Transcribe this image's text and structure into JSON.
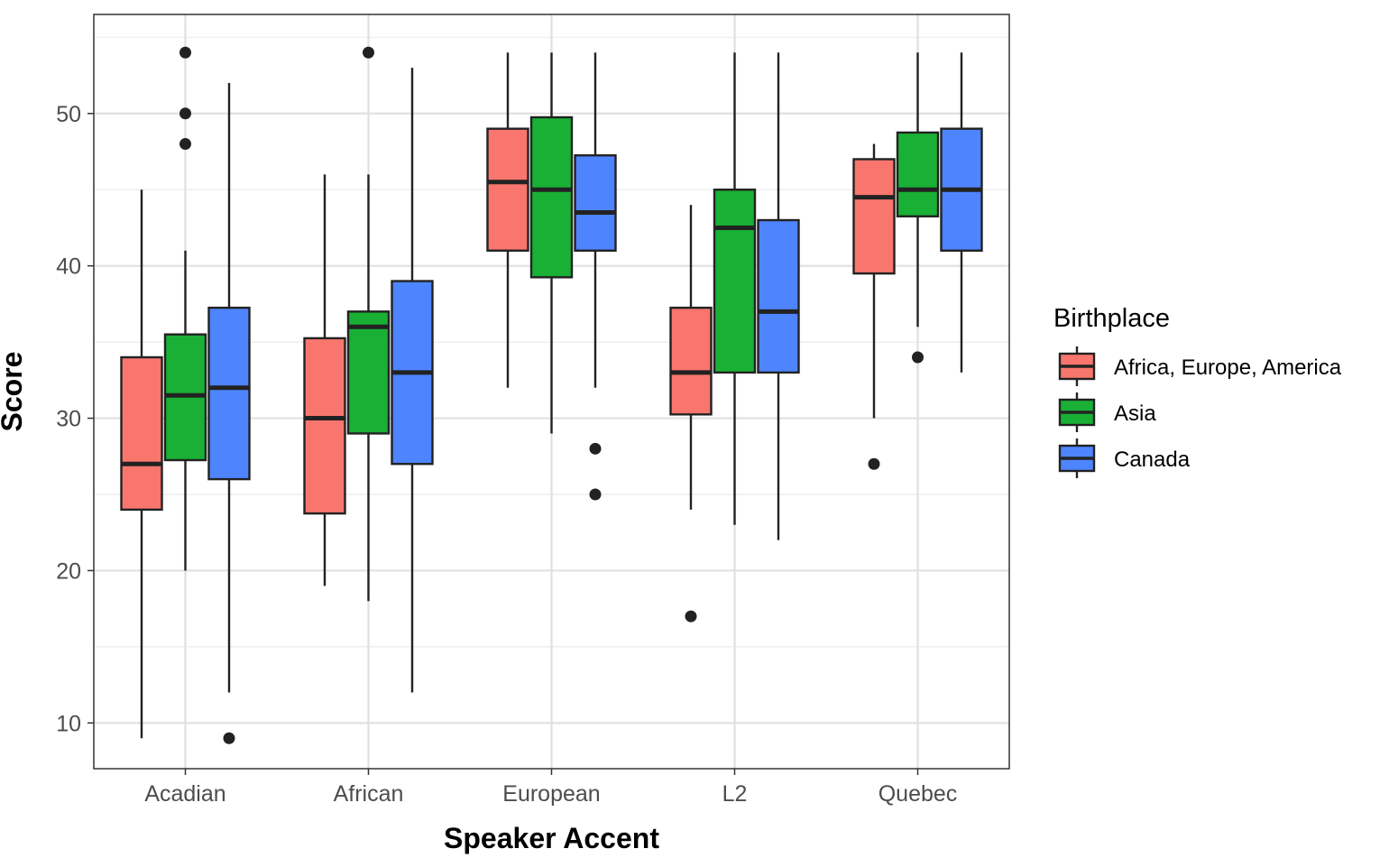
{
  "chart_data": {
    "type": "boxplot",
    "xlabel": "Speaker Accent",
    "ylabel": "Score",
    "categories": [
      "Acadian",
      "African",
      "European",
      "L2",
      "Quebec"
    ],
    "yticks": [
      "10",
      "20",
      "30",
      "40",
      "50"
    ],
    "ylim": [
      7,
      56.5
    ],
    "grid": true,
    "legend": {
      "title": "Birthplace",
      "position": "right"
    },
    "series": [
      {
        "name": "Africa, Europe, America",
        "color": "#F8766D",
        "boxes": [
          {
            "min": 9,
            "q1": 24,
            "median": 27,
            "q3": 34,
            "max": 45,
            "outliers": []
          },
          {
            "min": 19,
            "q1": 23.75,
            "median": 30,
            "q3": 35.25,
            "max": 46,
            "outliers": []
          },
          {
            "min": 32,
            "q1": 41,
            "median": 45.5,
            "q3": 49,
            "max": 54,
            "outliers": []
          },
          {
            "min": 24,
            "q1": 30.25,
            "median": 33,
            "q3": 37.25,
            "max": 44,
            "outliers": [
              17
            ]
          },
          {
            "min": 30,
            "q1": 39.5,
            "median": 44.5,
            "q3": 47,
            "max": 48,
            "outliers": [
              27
            ]
          }
        ]
      },
      {
        "name": "Asia",
        "color": "#19B035",
        "boxes": [
          {
            "min": 20,
            "q1": 27.25,
            "median": 31.5,
            "q3": 35.5,
            "max": 41,
            "outliers": [
              48,
              50,
              54
            ]
          },
          {
            "min": 18,
            "q1": 29,
            "median": 36,
            "q3": 37,
            "max": 46,
            "outliers": [
              54
            ]
          },
          {
            "min": 29,
            "q1": 39.25,
            "median": 45,
            "q3": 49.75,
            "max": 54,
            "outliers": []
          },
          {
            "min": 23,
            "q1": 33,
            "median": 42.5,
            "q3": 45,
            "max": 54,
            "outliers": []
          },
          {
            "min": 36,
            "q1": 43.25,
            "median": 45,
            "q3": 48.75,
            "max": 54,
            "outliers": [
              34
            ]
          }
        ]
      },
      {
        "name": "Canada",
        "color": "#4E84FE",
        "boxes": [
          {
            "min": 12,
            "q1": 26,
            "median": 32,
            "q3": 37.25,
            "max": 52,
            "outliers": [
              9
            ]
          },
          {
            "min": 12,
            "q1": 27,
            "median": 33,
            "q3": 39,
            "max": 53,
            "outliers": []
          },
          {
            "min": 32,
            "q1": 41,
            "median": 43.5,
            "q3": 47.25,
            "max": 54,
            "outliers": [
              25,
              28
            ]
          },
          {
            "min": 22,
            "q1": 33,
            "median": 37,
            "q3": 43,
            "max": 54,
            "outliers": []
          },
          {
            "min": 33,
            "q1": 41,
            "median": 45,
            "q3": 49,
            "max": 54,
            "outliers": []
          }
        ]
      }
    ]
  }
}
